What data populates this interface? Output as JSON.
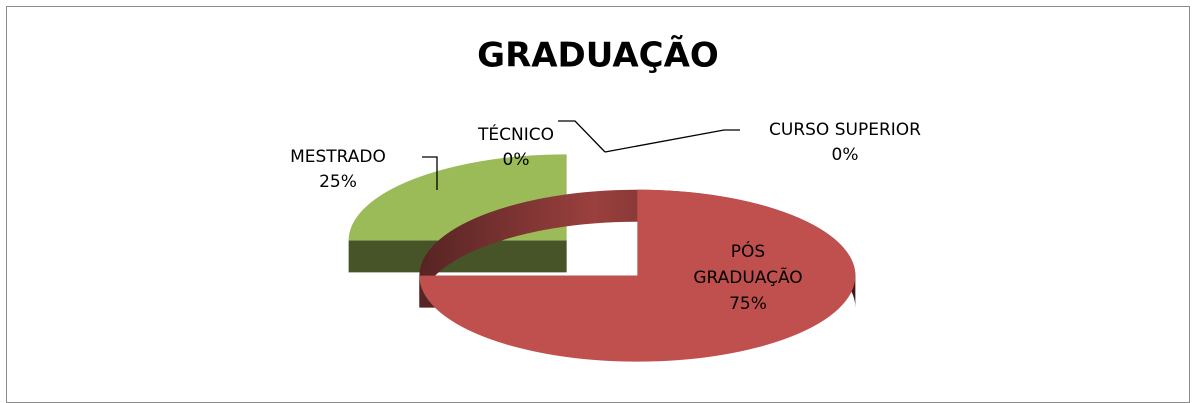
{
  "chart_data": {
    "type": "pie3d",
    "title": "GRADUAÇÃO",
    "categories": [
      "TÉCNICO",
      "CURSO SUPERIOR",
      "PÓS GRADUAÇÃO",
      "MESTRADO"
    ],
    "values": [
      0,
      0,
      75,
      25
    ],
    "value_labels": [
      "0%",
      "0%",
      "75%",
      "25%"
    ],
    "colors": [
      "#4f81bd",
      "#8064a2",
      "#c0504d",
      "#9bbb59"
    ]
  }
}
